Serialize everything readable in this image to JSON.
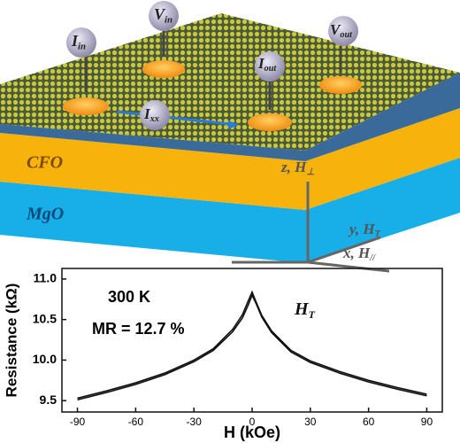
{
  "schematic": {
    "i_in": {
      "main": "I",
      "sub": "in"
    },
    "v_in": {
      "main": "V",
      "sub": "in"
    },
    "i_out": {
      "main": "I",
      "sub": "out"
    },
    "v_out": {
      "main": "V",
      "sub": "out"
    },
    "i_xx": {
      "main": "I",
      "sub": "xx"
    },
    "cfo": "CFO",
    "mgo": "MgO",
    "z_axis": {
      "main": "z, H",
      "sub": "⊥"
    },
    "y_axis": {
      "main": "y, H",
      "sub": "T"
    },
    "x_axis": {
      "main": "x, H",
      "sub": "//"
    }
  },
  "chart_data": {
    "type": "line",
    "y_label": "Resistance (kΩ)",
    "x_label": "H (kOe)",
    "annotations": [
      "300 K",
      "MR = 12.7 %"
    ],
    "curve_label": {
      "main": "H",
      "sub": "T"
    },
    "x": [
      -90,
      -75,
      -60,
      -45,
      -30,
      -20,
      -10,
      -5,
      -2,
      0,
      2,
      5,
      10,
      20,
      30,
      45,
      60,
      75,
      90
    ],
    "series": [
      {
        "color": "#111111",
        "values": [
          9.51,
          9.6,
          9.7,
          9.82,
          9.98,
          10.12,
          10.35,
          10.52,
          10.68,
          10.8,
          10.7,
          10.53,
          10.34,
          10.1,
          9.97,
          9.84,
          9.73,
          9.64,
          9.56
        ]
      },
      {
        "color": "#111111",
        "values": [
          9.53,
          9.62,
          9.72,
          9.84,
          10.0,
          10.14,
          10.38,
          10.56,
          10.73,
          10.84,
          10.72,
          10.55,
          10.36,
          10.12,
          9.99,
          9.86,
          9.75,
          9.66,
          9.58
        ]
      }
    ],
    "xlim": [
      -98,
      98
    ],
    "ylim": [
      9.36,
      11.13
    ],
    "xticks": [
      -90,
      -60,
      -30,
      0,
      30,
      60,
      90
    ],
    "yticks": [
      {
        "value": 11,
        "label": "11.0"
      },
      10.5,
      {
        "value": 10,
        "label": "10.0"
      },
      9.5
    ]
  }
}
